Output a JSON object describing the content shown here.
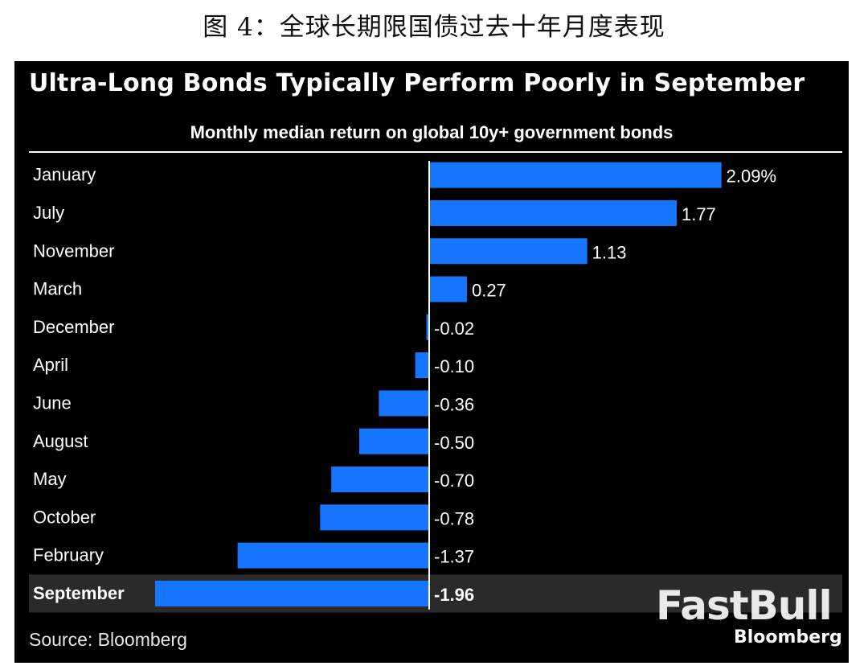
{
  "caption": "图 4：全球长期限国债过去十年月度表现",
  "chart_data": {
    "type": "bar",
    "orientation": "horizontal",
    "title": "Ultra-Long Bonds Typically Perform Poorly in September",
    "subtitle": "Monthly median return on global 10y+ government bonds",
    "categories": [
      "January",
      "July",
      "November",
      "March",
      "December",
      "April",
      "June",
      "August",
      "May",
      "October",
      "February",
      "September"
    ],
    "values": [
      2.09,
      1.77,
      1.13,
      0.27,
      -0.02,
      -0.1,
      -0.36,
      -0.5,
      -0.7,
      -0.78,
      -1.37,
      -1.96
    ],
    "value_labels": [
      "2.09%",
      "1.77",
      "1.13",
      "0.27",
      "-0.02",
      "-0.10",
      "-0.36",
      "-0.50",
      "-0.70",
      "-0.78",
      "-1.37",
      "-1.96"
    ],
    "highlight": "September",
    "xlim": [
      -2.0,
      2.1
    ],
    "grid": false,
    "legend": "none",
    "bar_color": "#1676ff",
    "background_color": "#000000",
    "highlight_row_color": "#2a2a2a"
  },
  "source": "Source: Bloomberg",
  "watermark": {
    "main": "FastBull",
    "sub": "Bloomberg"
  }
}
